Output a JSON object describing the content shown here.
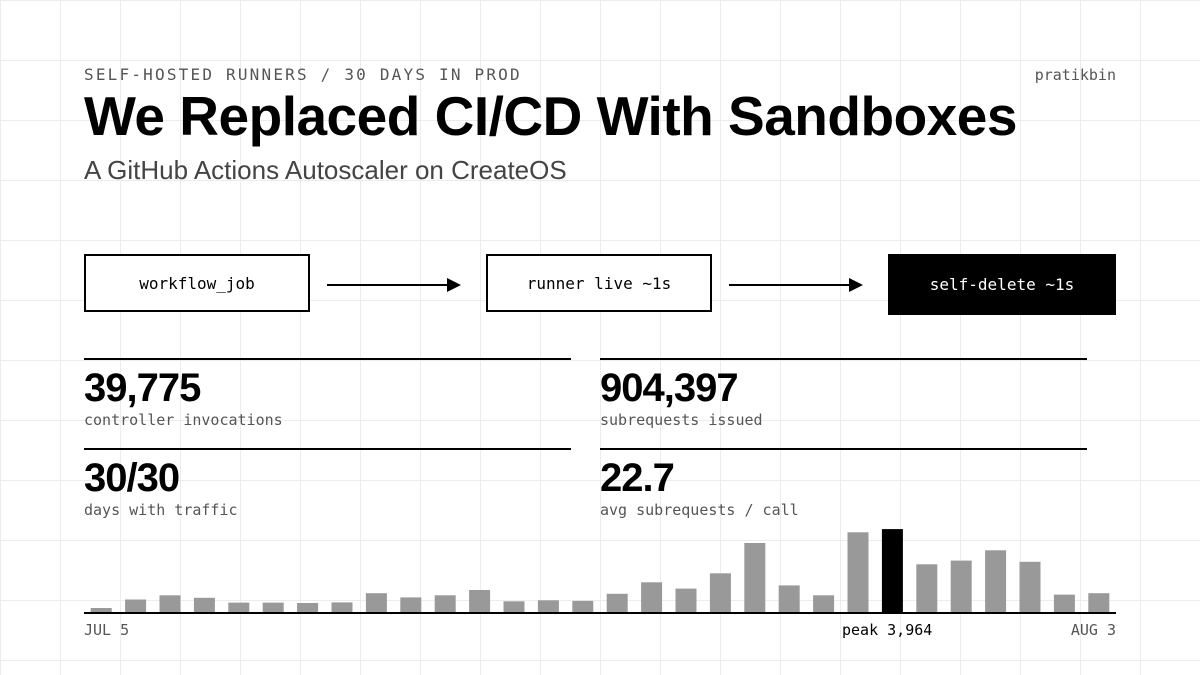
{
  "header": {
    "kicker": "SELF-HOSTED RUNNERS / 30 DAYS IN PROD",
    "author": "pratikbin",
    "title": "We Replaced CI/CD With Sandboxes",
    "subtitle": "A GitHub Actions Autoscaler on CreateOS"
  },
  "flow": {
    "steps": [
      "workflow_job",
      "runner live ~1s",
      "self-delete ~1s"
    ]
  },
  "stats": [
    {
      "value": "39,775",
      "label": "controller invocations"
    },
    {
      "value": "904,397",
      "label": "subrequests issued"
    },
    {
      "value": "30/30",
      "label": "days with traffic"
    },
    {
      "value": "22.7",
      "label": "avg subrequests / call"
    }
  ],
  "colors": {
    "bar": "#999999",
    "peak_bar": "#000000",
    "grid": "#ececec"
  },
  "chart_data": {
    "type": "bar",
    "x_start_label": "JUL 5",
    "x_end_label": "AUG 3",
    "peak_label": "peak 3,964",
    "peak_index": 23,
    "ylim": [
      0,
      4400
    ],
    "values": [
      190,
      600,
      800,
      680,
      450,
      450,
      430,
      460,
      900,
      700,
      800,
      1050,
      510,
      560,
      530,
      870,
      1420,
      1120,
      1850,
      3300,
      1270,
      800,
      3810,
      3964,
      2280,
      2460,
      2950,
      2400,
      830,
      900
    ]
  }
}
